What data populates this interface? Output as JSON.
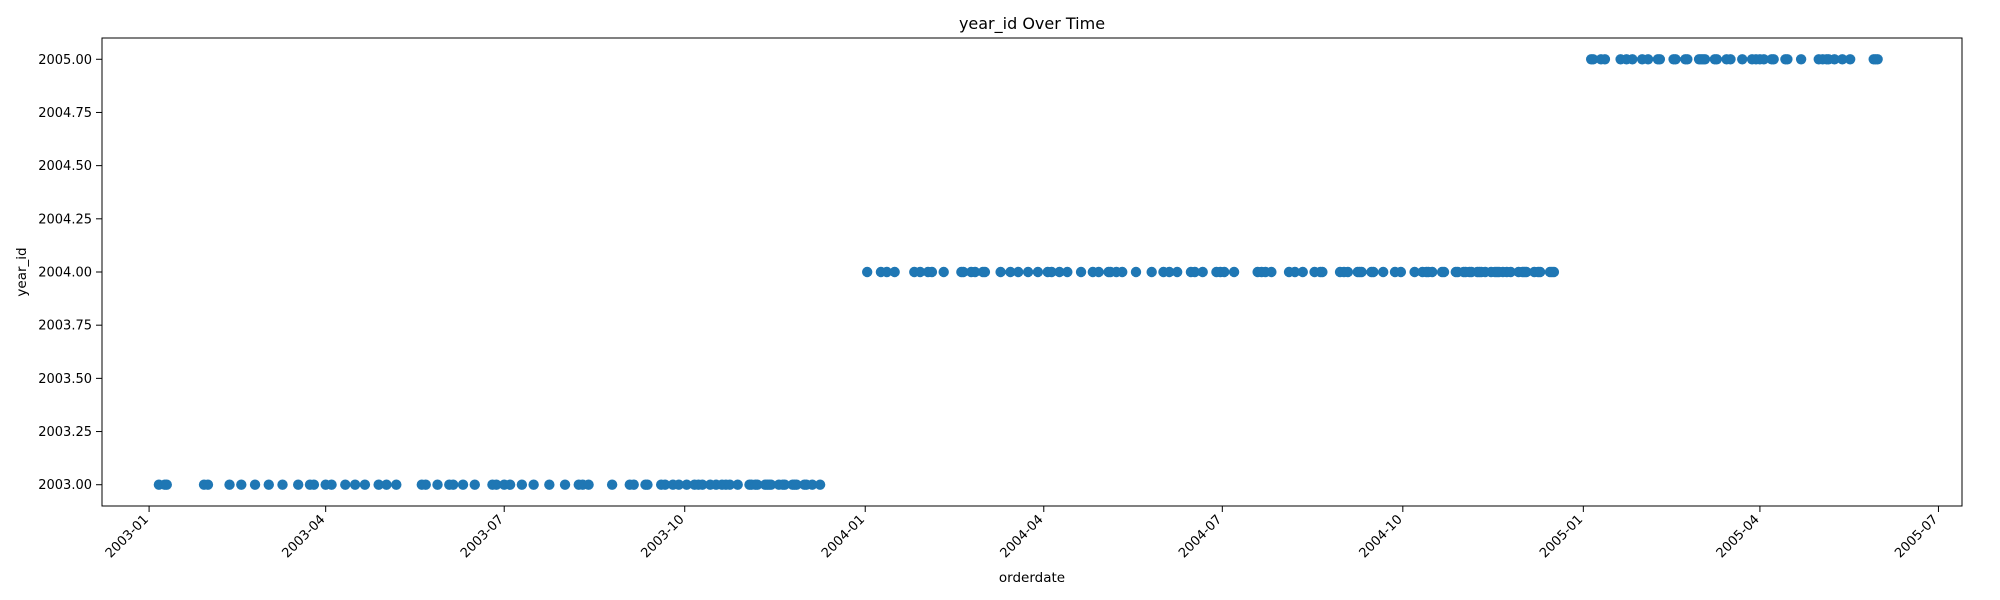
{
  "chart_data": {
    "type": "scatter",
    "title": "year_id Over Time",
    "xlabel": "orderdate",
    "ylabel": "year_id",
    "x_axis_type": "date",
    "xlim": [
      "2002-12-08",
      "2005-07-13"
    ],
    "ylim": [
      2002.9,
      2005.1
    ],
    "grid": false,
    "legend": "none",
    "marker_color": "#1f77b4",
    "x_ticks": [
      {
        "value": "2003-01-01",
        "label": "2003-01"
      },
      {
        "value": "2003-04-01",
        "label": "2003-04"
      },
      {
        "value": "2003-07-01",
        "label": "2003-07"
      },
      {
        "value": "2003-10-01",
        "label": "2003-10"
      },
      {
        "value": "2004-01-01",
        "label": "2004-01"
      },
      {
        "value": "2004-04-01",
        "label": "2004-04"
      },
      {
        "value": "2004-07-01",
        "label": "2004-07"
      },
      {
        "value": "2004-10-01",
        "label": "2004-10"
      },
      {
        "value": "2005-01-01",
        "label": "2005-01"
      },
      {
        "value": "2005-04-01",
        "label": "2005-04"
      },
      {
        "value": "2005-07-01",
        "label": "2005-07"
      }
    ],
    "y_ticks": [
      {
        "value": 2003.0,
        "label": "2003.00"
      },
      {
        "value": 2003.25,
        "label": "2003.25"
      },
      {
        "value": 2003.5,
        "label": "2003.50"
      },
      {
        "value": 2003.75,
        "label": "2003.75"
      },
      {
        "value": 2004.0,
        "label": "2004.00"
      },
      {
        "value": 2004.25,
        "label": "2004.25"
      },
      {
        "value": 2004.5,
        "label": "2004.50"
      },
      {
        "value": 2004.75,
        "label": "2004.75"
      },
      {
        "value": 2005.0,
        "label": "2005.00"
      }
    ],
    "series": [
      {
        "y": 2003,
        "x": [
          "2003-01-06",
          "2003-01-09",
          "2003-01-10",
          "2003-01-29",
          "2003-01-31",
          "2003-02-11",
          "2003-02-17",
          "2003-02-24",
          "2003-03-03",
          "2003-03-10",
          "2003-03-18",
          "2003-03-24",
          "2003-03-26",
          "2003-04-01",
          "2003-04-04",
          "2003-04-11",
          "2003-04-16",
          "2003-04-21",
          "2003-04-28",
          "2003-05-02",
          "2003-05-07",
          "2003-05-20",
          "2003-05-22",
          "2003-05-28",
          "2003-06-03",
          "2003-06-05",
          "2003-06-10",
          "2003-06-16",
          "2003-06-25",
          "2003-06-27",
          "2003-07-01",
          "2003-07-04",
          "2003-07-10",
          "2003-07-16",
          "2003-07-24",
          "2003-08-01",
          "2003-08-08",
          "2003-08-10",
          "2003-08-13",
          "2003-08-25",
          "2003-09-03",
          "2003-09-05",
          "2003-09-11",
          "2003-09-12",
          "2003-09-19",
          "2003-09-21",
          "2003-09-25",
          "2003-09-28",
          "2003-10-02",
          "2003-10-06",
          "2003-10-08",
          "2003-10-10",
          "2003-10-14",
          "2003-10-17",
          "2003-10-20",
          "2003-10-22",
          "2003-10-24",
          "2003-10-28",
          "2003-11-03",
          "2003-11-04",
          "2003-11-06",
          "2003-11-07",
          "2003-11-11",
          "2003-11-12",
          "2003-11-13",
          "2003-11-14",
          "2003-11-18",
          "2003-11-20",
          "2003-11-21",
          "2003-11-25",
          "2003-11-26",
          "2003-11-27",
          "2003-12-01",
          "2003-12-02",
          "2003-12-05",
          "2003-12-09"
        ]
      },
      {
        "y": 2004,
        "x": [
          "2004-01-02",
          "2004-01-09",
          "2004-01-12",
          "2004-01-16",
          "2004-01-26",
          "2004-01-29",
          "2004-02-02",
          "2004-02-04",
          "2004-02-10",
          "2004-02-19",
          "2004-02-20",
          "2004-02-24",
          "2004-02-26",
          "2004-03-01",
          "2004-03-02",
          "2004-03-10",
          "2004-03-15",
          "2004-03-19",
          "2004-03-24",
          "2004-03-29",
          "2004-04-03",
          "2004-04-05",
          "2004-04-09",
          "2004-04-13",
          "2004-04-20",
          "2004-04-26",
          "2004-04-29",
          "2004-05-04",
          "2004-05-05",
          "2004-05-08",
          "2004-05-11",
          "2004-05-18",
          "2004-05-26",
          "2004-06-01",
          "2004-06-04",
          "2004-06-08",
          "2004-06-15",
          "2004-06-17",
          "2004-06-21",
          "2004-06-28",
          "2004-06-30",
          "2004-07-02",
          "2004-07-07",
          "2004-07-19",
          "2004-07-21",
          "2004-07-23",
          "2004-07-26",
          "2004-08-04",
          "2004-08-07",
          "2004-08-11",
          "2004-08-17",
          "2004-08-20",
          "2004-08-21",
          "2004-08-30",
          "2004-09-01",
          "2004-09-03",
          "2004-09-08",
          "2004-09-09",
          "2004-09-10",
          "2004-09-15",
          "2004-09-16",
          "2004-09-21",
          "2004-09-27",
          "2004-09-30",
          "2004-10-07",
          "2004-10-11",
          "2004-10-13",
          "2004-10-14",
          "2004-10-16",
          "2004-10-21",
          "2004-10-22",
          "2004-10-28",
          "2004-10-29",
          "2004-11-01",
          "2004-11-02",
          "2004-11-04",
          "2004-11-05",
          "2004-11-08",
          "2004-11-09",
          "2004-11-10",
          "2004-11-12",
          "2004-11-15",
          "2004-11-17",
          "2004-11-18",
          "2004-11-19",
          "2004-11-21",
          "2004-11-23",
          "2004-11-25",
          "2004-11-29",
          "2004-12-01",
          "2004-12-02",
          "2004-12-03",
          "2004-12-07",
          "2004-12-09",
          "2004-12-10",
          "2004-12-15",
          "2004-12-16",
          "2004-12-17"
        ]
      },
      {
        "y": 2005,
        "x": [
          "2005-01-05",
          "2005-01-06",
          "2005-01-10",
          "2005-01-12",
          "2005-01-20",
          "2005-01-23",
          "2005-01-26",
          "2005-01-31",
          "2005-02-03",
          "2005-02-08",
          "2005-02-09",
          "2005-02-16",
          "2005-02-17",
          "2005-02-22",
          "2005-02-23",
          "2005-03-01",
          "2005-03-02",
          "2005-03-03",
          "2005-03-04",
          "2005-03-09",
          "2005-03-10",
          "2005-03-15",
          "2005-03-17",
          "2005-03-23",
          "2005-03-28",
          "2005-03-30",
          "2005-04-01",
          "2005-04-03",
          "2005-04-07",
          "2005-04-08",
          "2005-04-14",
          "2005-04-15",
          "2005-04-22",
          "2005-05-01",
          "2005-05-03",
          "2005-05-05",
          "2005-05-06",
          "2005-05-09",
          "2005-05-13",
          "2005-05-17",
          "2005-05-29",
          "2005-05-30",
          "2005-05-31"
        ]
      }
    ]
  }
}
